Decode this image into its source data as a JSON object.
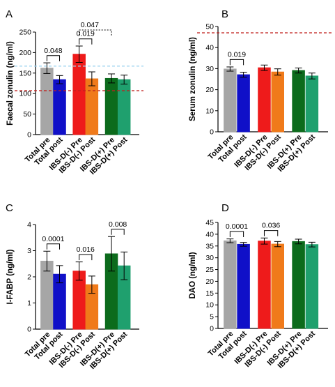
{
  "chart_data": [
    {
      "type": "bar",
      "panel_label": "A",
      "ylabel": "Faecal zonulin (ng/ml)",
      "ylim": [
        0,
        250
      ],
      "yticks": [
        0,
        50,
        100,
        150,
        200,
        250
      ],
      "categories": [
        "Total pre",
        "Total post",
        "IBS-D(-) Pre",
        "IBS-D(-) Post",
        "IBS-D(+) Pre",
        "IBS-D(+) Post"
      ],
      "values": [
        162,
        134,
        196,
        136,
        137,
        134
      ],
      "errors": [
        13,
        10,
        20,
        17,
        11,
        11
      ],
      "colors": [
        "#a6a6a6",
        "#1010c8",
        "#ee1b1b",
        "#f07a1a",
        "#0c6b1c",
        "#1fa06e"
      ],
      "reference_lines": [
        {
          "y": 107,
          "color": "#c0201e",
          "style": "dashed"
        },
        {
          "y": 167,
          "color": "#a0d4f0",
          "style": "dashed"
        }
      ],
      "annotations": [
        {
          "from": 0,
          "to": 1,
          "text": "0.048",
          "style": "solid"
        },
        {
          "from": 2,
          "to": 3,
          "text": "0.019",
          "style": "solid"
        },
        {
          "from": 2,
          "to": 4,
          "text": "0.047",
          "style": "dotted"
        }
      ]
    },
    {
      "type": "bar",
      "panel_label": "B",
      "ylabel": "Serum zonulin (ng/ml)",
      "ylim": [
        0,
        50
      ],
      "yticks": [
        0,
        10,
        20,
        30,
        40,
        50
      ],
      "categories": [
        "Total pre",
        "Total post",
        "IBS-D(-) Pre",
        "IBS-D(-) Post",
        "IBS-D(+) Pre",
        "IBS-D(+) Post"
      ],
      "values": [
        29.8,
        27.1,
        30.4,
        28.4,
        29.1,
        26.5
      ],
      "errors": [
        1.0,
        1.2,
        1.3,
        1.5,
        1.2,
        1.4
      ],
      "colors": [
        "#a6a6a6",
        "#1010c8",
        "#ee1b1b",
        "#f07a1a",
        "#0c6b1c",
        "#1fa06e"
      ],
      "reference_lines": [
        {
          "y": 47,
          "color": "#c0201e",
          "style": "dashed"
        }
      ],
      "annotations": [
        {
          "from": 0,
          "to": 1,
          "text": "0.019",
          "style": "solid"
        }
      ]
    },
    {
      "type": "bar",
      "panel_label": "C",
      "ylabel": "I-FABP (ng/ml)",
      "ylim": [
        0,
        4
      ],
      "yticks": [
        0,
        1,
        2,
        3,
        4
      ],
      "categories": [
        "Total pre",
        "Total post",
        "IBS-D(-) Pre",
        "IBS-D(-) Post",
        "IBS-D(+) Pre",
        "IBS-D(+) Post"
      ],
      "values": [
        2.6,
        2.1,
        2.22,
        1.7,
        2.88,
        2.42
      ],
      "errors": [
        0.38,
        0.33,
        0.35,
        0.33,
        0.66,
        0.53
      ],
      "colors": [
        "#a6a6a6",
        "#1010c8",
        "#ee1b1b",
        "#f07a1a",
        "#0c6b1c",
        "#1fa06e"
      ],
      "reference_lines": [],
      "annotations": [
        {
          "from": 0,
          "to": 1,
          "text": "0.0001",
          "style": "solid"
        },
        {
          "from": 2,
          "to": 3,
          "text": "0.016",
          "style": "solid"
        },
        {
          "from": 4,
          "to": 5,
          "text": "0.008",
          "style": "solid"
        }
      ]
    },
    {
      "type": "bar",
      "panel_label": "D",
      "ylabel": "DAO (ng/ml)",
      "ylim": [
        0,
        45
      ],
      "yticks": [
        0,
        5,
        10,
        15,
        20,
        25,
        30,
        35,
        40,
        45
      ],
      "categories": [
        "Total pre",
        "Total post",
        "IBS-D(-) Pre",
        "IBS-D(-) Post",
        "IBS-D(+) Pre",
        "IBS-D(+) Post"
      ],
      "values": [
        37.2,
        35.7,
        37.1,
        35.8,
        36.9,
        35.6
      ],
      "errors": [
        0.8,
        0.8,
        1.3,
        1.1,
        1.0,
        1.0
      ],
      "colors": [
        "#a6a6a6",
        "#1010c8",
        "#ee1b1b",
        "#f07a1a",
        "#0c6b1c",
        "#1fa06e"
      ],
      "reference_lines": [],
      "annotations": [
        {
          "from": 0,
          "to": 1,
          "text": "0.0001",
          "style": "solid"
        },
        {
          "from": 2,
          "to": 3,
          "text": "0.036",
          "style": "solid"
        }
      ]
    }
  ]
}
